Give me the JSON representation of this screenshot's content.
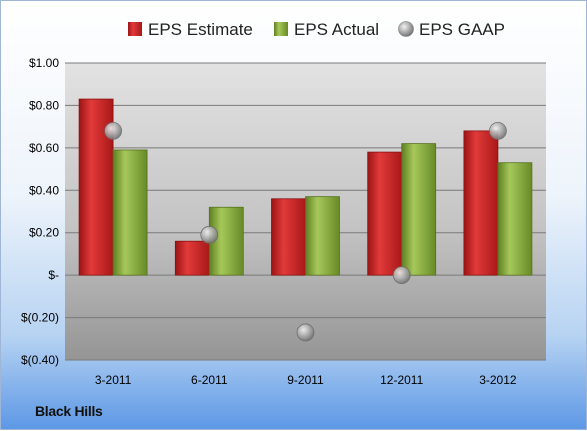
{
  "chart_data": {
    "type": "bar",
    "categories": [
      "3-2011",
      "6-2011",
      "9-2011",
      "12-2011",
      "3-2012"
    ],
    "series": [
      {
        "name": "EPS Estimate",
        "kind": "bar",
        "color": "#d42a2a",
        "values": [
          0.83,
          0.16,
          0.36,
          0.58,
          0.68
        ]
      },
      {
        "name": "EPS Actual",
        "kind": "bar",
        "color": "#8fb33c",
        "values": [
          0.59,
          0.32,
          0.37,
          0.62,
          0.53
        ]
      },
      {
        "name": "EPS GAAP",
        "kind": "marker",
        "color": "#a8a8a8",
        "values": [
          0.68,
          0.19,
          -0.27,
          0.0,
          0.68
        ]
      }
    ],
    "y_ticks": [
      1.0,
      0.8,
      0.6,
      0.4,
      0.2,
      0.0,
      -0.2,
      -0.4
    ],
    "y_tick_labels": [
      "$1.00",
      "$0.80",
      "$0.60",
      "$0.40",
      "$0.20",
      "$-",
      "$(0.20)",
      "$(0.40)"
    ],
    "ylim": [
      -0.4,
      1.0
    ],
    "grid": true,
    "legend_position": "top"
  },
  "footer": {
    "company": "Black Hills"
  }
}
